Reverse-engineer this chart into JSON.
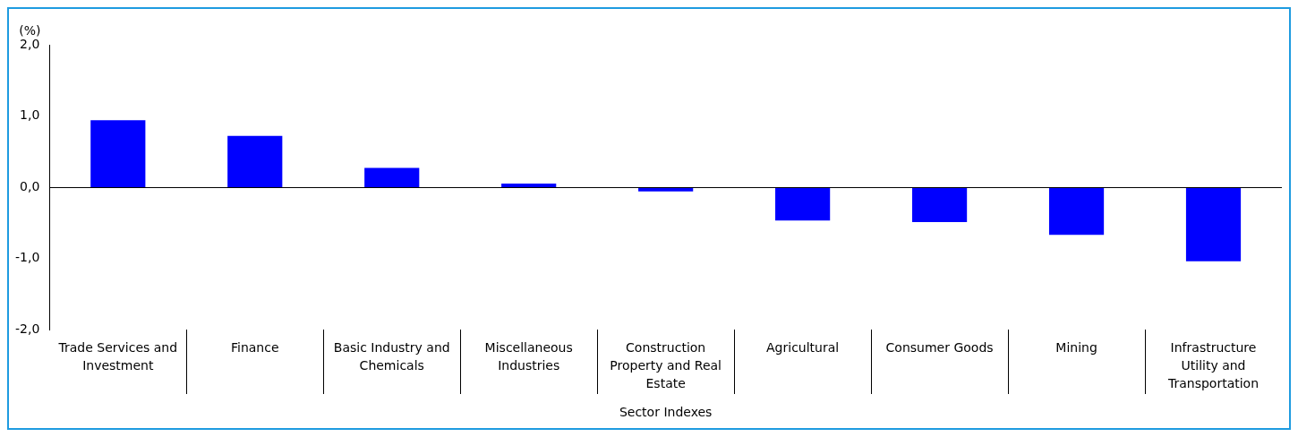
{
  "chart_data": {
    "type": "bar",
    "ylabel": "(%)",
    "xlabel": "Sector Indexes",
    "categories": [
      "Trade Services and Investment",
      "Finance",
      "Basic Industry and Chemicals",
      "Miscellaneous Industries",
      "Construction Property and Real Estate",
      "Agricultural",
      "Consumer Goods",
      "Mining",
      "Infrastructure Utility and Transportation"
    ],
    "values": [
      0.94,
      0.72,
      0.27,
      0.05,
      -0.06,
      -0.47,
      -0.49,
      -0.67,
      -1.04
    ],
    "color": "#0000ff",
    "ylim": [
      -2,
      2
    ],
    "yticks": [
      {
        "value": -2,
        "label": "-2,0"
      },
      {
        "value": -1,
        "label": "-1,0"
      },
      {
        "value": 0,
        "label": "0,0"
      },
      {
        "value": 1,
        "label": "1,0"
      },
      {
        "value": 2,
        "label": "2,0"
      }
    ],
    "ref_lines": [
      {
        "axis": "y",
        "value": 0,
        "color": "#000000"
      }
    ],
    "grid": false,
    "legend": false
  }
}
